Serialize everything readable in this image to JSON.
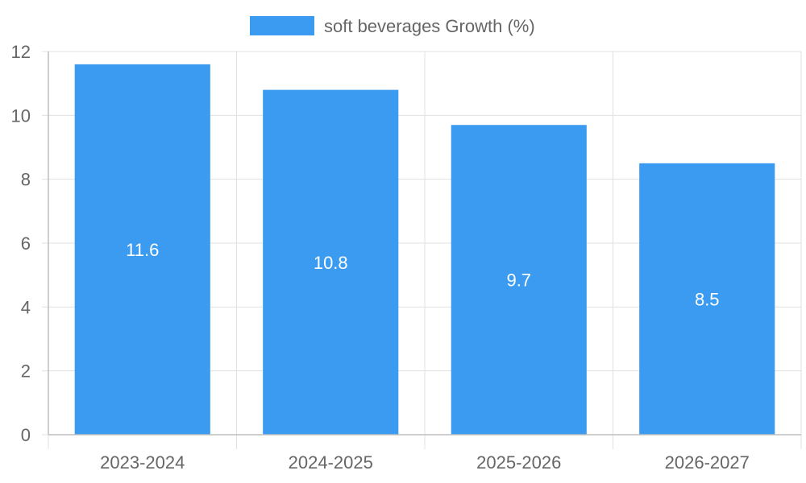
{
  "chart_data": {
    "type": "bar",
    "categories": [
      "2023-2024",
      "2024-2025",
      "2025-2026",
      "2026-2027"
    ],
    "series": [
      {
        "name": "soft beverages Growth (%)",
        "values": [
          11.6,
          10.8,
          9.7,
          8.5
        ]
      }
    ],
    "data_labels": [
      "11.6",
      "10.8",
      "9.7",
      "8.5"
    ],
    "ylim": [
      0,
      12
    ],
    "yticks": [
      0,
      2,
      4,
      6,
      8,
      10,
      12
    ],
    "ytick_labels": [
      "0",
      "2",
      "4",
      "6",
      "8",
      "10",
      "12"
    ],
    "grid": true,
    "legend_position": "top-center",
    "bar_color": "#3a9bf0"
  }
}
